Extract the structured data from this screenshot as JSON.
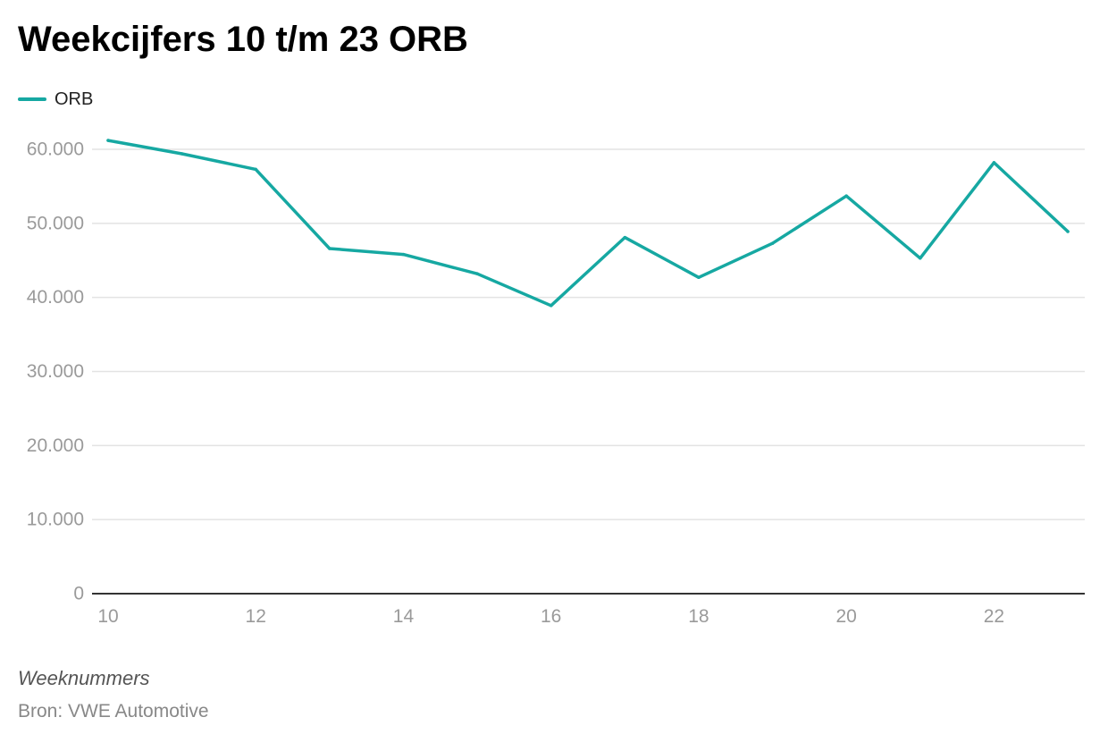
{
  "colors": {
    "series": "#16a8a2",
    "grid": "#e3e3e3",
    "axis": "#333333",
    "tick_label": "#9a9a9a"
  },
  "legend": {
    "label": "ORB"
  },
  "footer": {
    "source": "Bron: VWE Automotive"
  },
  "chart_data": {
    "type": "line",
    "title": "Weekcijfers 10 t/m 23 ORB",
    "xlabel": "Weeknummers",
    "ylabel": "",
    "x": [
      10,
      11,
      12,
      13,
      14,
      15,
      16,
      17,
      18,
      19,
      20,
      21,
      22,
      23
    ],
    "series": [
      {
        "name": "ORB",
        "values": [
          61200,
          59400,
          57300,
          46600,
          45800,
          43200,
          38900,
          48100,
          42700,
          47300,
          53700,
          45300,
          58200,
          48900
        ]
      }
    ],
    "xlim": [
      10,
      23
    ],
    "ylim": [
      0,
      60000
    ],
    "x_ticks": [
      10,
      12,
      14,
      16,
      18,
      20,
      22
    ],
    "x_tick_labels": [
      "10",
      "12",
      "14",
      "16",
      "18",
      "20",
      "22"
    ],
    "y_ticks": [
      0,
      10000,
      20000,
      30000,
      40000,
      50000,
      60000
    ],
    "y_tick_labels": [
      "0",
      "10.000",
      "20.000",
      "30.000",
      "40.000",
      "50.000",
      "60.000"
    ],
    "grid": true,
    "legend_position": "top-left"
  }
}
